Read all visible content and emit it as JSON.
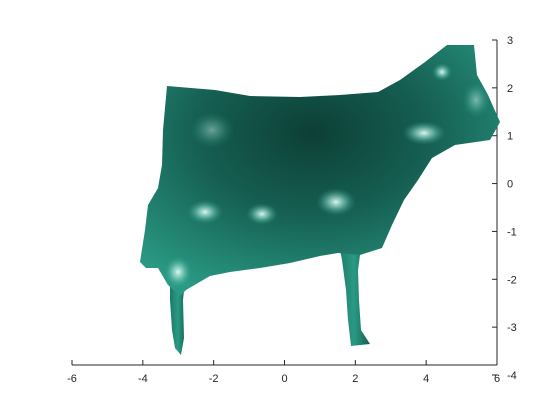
{
  "chart_data": {
    "type": "surface",
    "title": "",
    "xlabel": "",
    "ylabel": "",
    "zlabel": "",
    "surface_color": "#1e7f6c",
    "surface_shadow_color": "#0d3f36",
    "highlight_color": "#c8f2ea",
    "axes_color": "#262626",
    "grid": false,
    "x_axis": {
      "range": [
        -6,
        6
      ],
      "ticks": [
        -6,
        -4,
        -2,
        0,
        2,
        4,
        6
      ]
    },
    "z_axis": {
      "range": [
        -4,
        3
      ],
      "ticks": [
        3,
        2,
        1,
        0,
        -1,
        -2,
        -3,
        -4
      ]
    },
    "surface_object": "cow"
  }
}
